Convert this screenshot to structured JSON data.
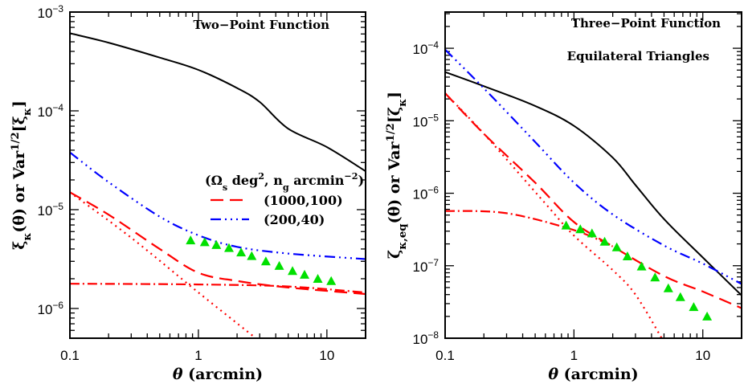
{
  "chart_data": [
    {
      "type": "line",
      "xscale": "log",
      "yscale": "log",
      "xlim": [
        0.1,
        20
      ],
      "ylim": [
        5e-07,
        0.001
      ],
      "grid": false,
      "annotations": [
        "Two−Point Function"
      ],
      "xlabel": {
        "sym": "θ",
        "rest": " (arcmin)"
      },
      "ylabel": {
        "a": "ξ",
        "a_sub": "κ",
        "b": "(θ) or Var",
        "b_sup": "1/2",
        "c": "[ξ",
        "c_sub": "κ",
        "d": "]"
      },
      "x_ticks": [
        {
          "value": 0.1,
          "label": "0.1"
        },
        {
          "value": 1,
          "label": "1"
        },
        {
          "value": 10,
          "label": "10"
        }
      ],
      "y_ticks": [
        {
          "value": 0.001,
          "base": "10",
          "exp": "−3"
        },
        {
          "value": 0.0001,
          "base": "10",
          "exp": "−4"
        },
        {
          "value": 1e-05,
          "base": "10",
          "exp": "−5"
        },
        {
          "value": 1e-06,
          "base": "10",
          "exp": "−6"
        }
      ],
      "legend": {
        "placement": "center-right",
        "title": {
          "a": "(Ω",
          "a_sub": "s",
          "b": " deg",
          "b_sup": "2",
          "c": ", n",
          "c_sub": "g",
          "d": " arcmin",
          "d_sup": "−2",
          "e": ")"
        },
        "entries": [
          {
            "series": 2,
            "label": "(1000,100)"
          },
          {
            "series": 1,
            "label": "(200,40)"
          }
        ]
      },
      "series": [
        {
          "color": "#000000",
          "style": "solid",
          "x": [
            0.1,
            0.2,
            0.5,
            1,
            2,
            3,
            5,
            10,
            20
          ],
          "y": [
            0.00061,
            0.00049,
            0.000346,
            0.00026,
            0.00017,
            0.000123,
            6.6e-05,
            4.3e-05,
            2.45e-05
          ]
        },
        {
          "name": "(200,40)",
          "color": "#0000ff",
          "style": "dash-dot-dot-dot",
          "x": [
            0.1,
            0.2,
            0.5,
            1,
            2,
            5,
            20
          ],
          "y": [
            3.8e-05,
            1.9e-05,
            8.5e-06,
            5.5e-06,
            4.2e-06,
            3.6e-06,
            3.16e-06
          ]
        },
        {
          "name": "(1000,100)",
          "color": "#ff0000",
          "style": "long-dash",
          "x": [
            0.1,
            0.2,
            0.5,
            1,
            2,
            5,
            20
          ],
          "y": [
            1.5e-05,
            8.9e-06,
            4e-06,
            2.3e-06,
            1.9e-06,
            1.63e-06,
            1.4e-06
          ]
        },
        {
          "color": "#ff0000",
          "style": "dash-dot",
          "x": [
            0.1,
            1,
            5,
            20
          ],
          "y": [
            1.78e-06,
            1.75e-06,
            1.67e-06,
            1.45e-06
          ]
        },
        {
          "color": "#ff0000",
          "style": "dotted",
          "x": [
            0.1,
            0.3,
            1,
            2.8
          ],
          "y": [
            1.5e-05,
            5.2e-06,
            1.45e-06,
            5e-07
          ]
        },
        {
          "color": "#00e000",
          "style": "triangles",
          "x": [
            0.87,
            1.12,
            1.38,
            1.73,
            2.15,
            2.6,
            3.35,
            4.26,
            5.4,
            6.7,
            8.5,
            10.8
          ],
          "y": [
            4.9e-06,
            4.7e-06,
            4.4e-06,
            4.1e-06,
            3.7e-06,
            3.4e-06,
            3e-06,
            2.7e-06,
            2.4e-06,
            2.2e-06,
            2e-06,
            1.9e-06
          ]
        }
      ]
    },
    {
      "type": "line",
      "xscale": "log",
      "yscale": "log",
      "xlim": [
        0.1,
        20
      ],
      "ylim": [
        1e-08,
        0.000316
      ],
      "grid": false,
      "annotations": [
        "Three−Point Function",
        "Equilateral Triangles"
      ],
      "xlabel": {
        "sym": "θ",
        "rest": " (arcmin)"
      },
      "ylabel": {
        "a": "ζ",
        "a_sub": "κ,eq",
        "b": "(θ) or Var",
        "b_sup": "1/2",
        "c": "[ζ",
        "c_sub": "κ",
        "d": "]"
      },
      "x_ticks": [
        {
          "value": 0.1,
          "label": "0.1"
        },
        {
          "value": 1,
          "label": "1"
        },
        {
          "value": 10,
          "label": "10"
        }
      ],
      "y_ticks": [
        {
          "value": 0.0001,
          "base": "10",
          "exp": "−4"
        },
        {
          "value": 1e-05,
          "base": "10",
          "exp": "−5"
        },
        {
          "value": 1e-06,
          "base": "10",
          "exp": "−6"
        },
        {
          "value": 1e-07,
          "base": "10",
          "exp": "−7"
        },
        {
          "value": 1e-08,
          "base": "10",
          "exp": "−8"
        }
      ],
      "series": [
        {
          "color": "#000000",
          "style": "solid",
          "x": [
            0.1,
            0.2,
            0.5,
            1,
            2,
            3,
            5,
            10,
            20
          ],
          "y": [
            4.7e-05,
            3e-05,
            1.6e-05,
            8.5e-06,
            3.1e-06,
            1.3e-06,
            4.4e-07,
            1.3e-07,
            3.9e-08
          ]
        },
        {
          "color": "#0000ff",
          "style": "dash-dot-dot-dot",
          "x": [
            0.1,
            0.2,
            0.5,
            1,
            2,
            5,
            10,
            20
          ],
          "y": [
            9.6e-05,
            2.8e-05,
            5.1e-06,
            1.4e-06,
            5.1e-07,
            1.9e-07,
            1.07e-07,
            5.6e-08
          ]
        },
        {
          "color": "#ff0000",
          "style": "long-dash",
          "x": [
            0.1,
            0.2,
            0.5,
            1,
            2,
            5,
            10,
            20
          ],
          "y": [
            2.4e-05,
            6.6e-06,
            1.4e-06,
            4e-07,
            1.85e-07,
            7.2e-08,
            4.4e-08,
            2.6e-08
          ]
        },
        {
          "color": "#ff0000",
          "style": "dash-dot",
          "x": [
            0.1,
            0.3,
            1,
            2
          ],
          "y": [
            5.7e-07,
            5.3e-07,
            3.1e-07,
            1.85e-07
          ]
        },
        {
          "color": "#ff0000",
          "style": "dotted",
          "x": [
            0.1,
            0.2,
            0.6,
            1,
            2,
            3,
            4.8
          ],
          "y": [
            2.4e-05,
            6.6e-06,
            7.2e-07,
            2.6e-07,
            8.7e-08,
            4e-08,
            1e-08
          ]
        },
        {
          "color": "#00e000",
          "style": "triangles",
          "x": [
            0.87,
            1.12,
            1.38,
            1.73,
            2.15,
            2.6,
            3.35,
            4.26,
            5.4,
            6.7,
            8.5,
            10.8
          ],
          "y": [
            3.6e-07,
            3.2e-07,
            2.8e-07,
            2.15e-07,
            1.8e-07,
            1.35e-07,
            9.8e-08,
            6.9e-08,
            4.9e-08,
            3.7e-08,
            2.7e-08,
            2e-08
          ]
        }
      ]
    }
  ]
}
